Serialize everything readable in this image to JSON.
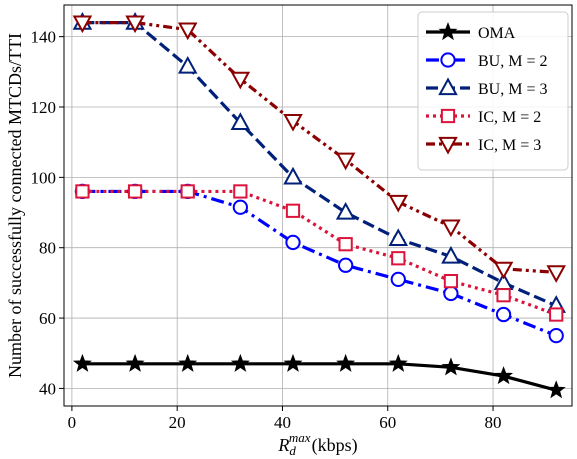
{
  "chart_data": {
    "type": "line",
    "xlabel": "(kbps)",
    "xlabel_math": {
      "base": "R",
      "sub": "d",
      "sup": "max"
    },
    "ylabel": "Number of successfully connected MTCDs/TTI",
    "xlim": [
      -1.5,
      95
    ],
    "ylim": [
      35,
      149
    ],
    "xticks": [
      0,
      20,
      40,
      60,
      80
    ],
    "yticks": [
      40,
      60,
      80,
      100,
      120,
      140
    ],
    "grid": true,
    "legend_position": "top-right",
    "x": [
      2,
      12,
      22,
      32,
      42,
      52,
      62,
      72,
      82,
      92
    ],
    "series": [
      {
        "name": "OMA",
        "color": "#000000",
        "marker": "star",
        "dash": "solid",
        "values": [
          47,
          47,
          47,
          47,
          47,
          47,
          47,
          46,
          43.5,
          39.5
        ]
      },
      {
        "name": "BU, M = 2",
        "color": "#0000ff",
        "marker": "circle",
        "dash": "dashdot",
        "values": [
          96,
          96,
          96,
          91.5,
          81.5,
          75,
          71,
          67,
          61,
          55
        ]
      },
      {
        "name": "BU, M =  3",
        "color": "#00207a",
        "marker": "triangle-up",
        "dash": "dashed",
        "values": [
          144,
          144,
          131.5,
          115.5,
          100,
          90,
          82.5,
          77.5,
          70,
          63.5
        ]
      },
      {
        "name": "IC, M = 2",
        "color": "#dc143c",
        "marker": "square",
        "dash": "dotted",
        "values": [
          96,
          96,
          96,
          96,
          90.5,
          81,
          77,
          70.5,
          66.5,
          61
        ]
      },
      {
        "name": "IC, M = 3",
        "color": "#8b0000",
        "marker": "triangle-down",
        "dash": "dashdotdot",
        "values": [
          144,
          144,
          142,
          128,
          116,
          105,
          93,
          86,
          74,
          73
        ]
      }
    ]
  }
}
